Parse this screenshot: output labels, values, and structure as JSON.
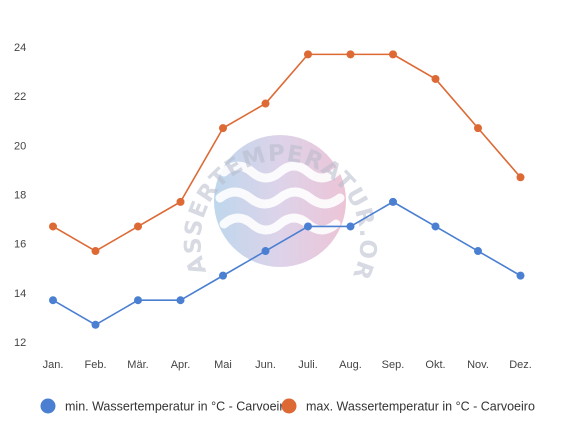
{
  "chart_data": {
    "type": "line",
    "categories": [
      "Jan.",
      "Feb.",
      "Mär.",
      "Apr.",
      "Mai",
      "Jun.",
      "Juli.",
      "Aug.",
      "Sep.",
      "Okt.",
      "Nov.",
      "Dez."
    ],
    "series": [
      {
        "name": "min. Wassertemperatur in °C - Carvoeiro",
        "color": "#4a7fd1",
        "values": [
          13.7,
          12.7,
          13.7,
          13.7,
          14.7,
          15.7,
          16.7,
          16.7,
          17.7,
          16.7,
          15.7,
          14.7
        ]
      },
      {
        "name": "max. Wassertemperatur in °C - Carvoeiro",
        "color": "#dd6a35",
        "values": [
          16.7,
          15.7,
          16.7,
          17.7,
          20.7,
          21.7,
          23.7,
          23.7,
          23.7,
          22.7,
          20.7,
          18.7
        ]
      }
    ],
    "yticks": [
      12,
      14,
      16,
      18,
      20,
      22,
      24
    ],
    "ylim": [
      12,
      24
    ],
    "grid": false,
    "legend_position": "bottom"
  },
  "watermark": {
    "text": "WASSERTEMPERATUR.ORG",
    "icon": "waves-circle-logo"
  }
}
